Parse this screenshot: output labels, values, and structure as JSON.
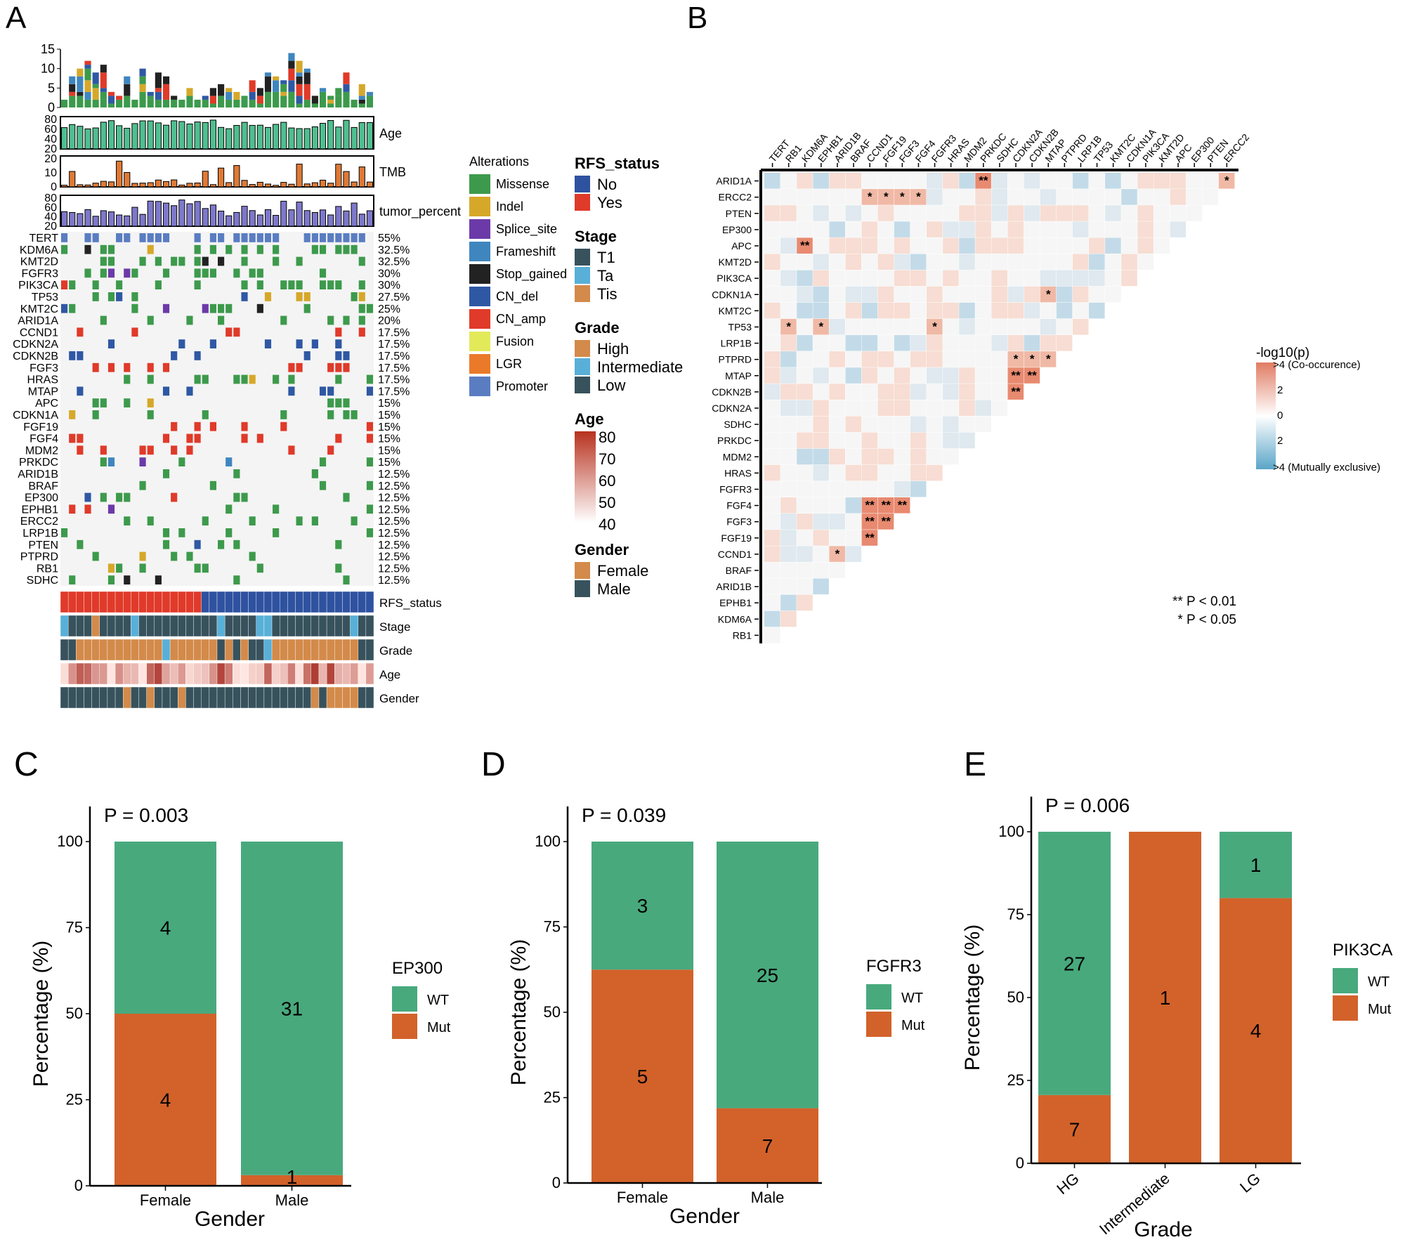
{
  "panel_letters": [
    "A",
    "B",
    "C",
    "D",
    "E"
  ],
  "colors": {
    "missense": "#3d9a4c",
    "indel": "#d6a82a",
    "splice_site": "#6c3aa8",
    "frameshift": "#3f86bf",
    "stop_gained": "#222222",
    "cn_del": "#2f58a4",
    "cn_amp": "#e03a2a",
    "fusion": "#e3ea5a",
    "lgr": "#ea7a2a",
    "promoter": "#5a7dc2",
    "rfs_no": "#2f52a0",
    "rfs_yes": "#e03a2a",
    "stage_t1": "#37525c",
    "stage_ta": "#58b0d8",
    "stage_tis": "#d38a4a",
    "grade_high": "#d38a4a",
    "grade_intermediate": "#58b0d8",
    "grade_low": "#37525c",
    "gender_female": "#d38a4a",
    "gender_male": "#37525c",
    "wt": "#48a97d",
    "mut": "#d2622a",
    "age_bar": "#4fbf8f",
    "tmb_bar": "#e07a35",
    "tumor_bar": "#8c86d6",
    "cooccur": "#e07c63",
    "exclusive": "#5aa5c8"
  },
  "chart_data": [
    {
      "type": "table",
      "panel": "A",
      "tracks": [
        "Age",
        "TMB",
        "tumor_percent"
      ],
      "tmb_ticks": [
        "0",
        "5",
        "10",
        "15"
      ],
      "age_ticks": [
        "20",
        "40",
        "60",
        "80"
      ],
      "tmb_track_ticks": [
        "0",
        "10",
        "20"
      ],
      "tumor_ticks": [
        "20",
        "40",
        "60",
        "80"
      ],
      "genes": [
        "TERT",
        "KDM6A",
        "KMT2D",
        "FGFR3",
        "PIK3CA",
        "TP53",
        "KMT2C",
        "ARID1A",
        "CCND1",
        "CDKN2A",
        "CDKN2B",
        "FGF3",
        "HRAS",
        "MTAP",
        "APC",
        "CDKN1A",
        "FGF19",
        "FGF4",
        "MDM2",
        "PRKDC",
        "ARID1B",
        "BRAF",
        "EP300",
        "EPHB1",
        "ERCC2",
        "LRP1B",
        "PTEN",
        "PTPRD",
        "RB1",
        "SDHC"
      ],
      "frequencies": [
        "55%",
        "32.5%",
        "32.5%",
        "30%",
        "30%",
        "27.5%",
        "25%",
        "20%",
        "17.5%",
        "17.5%",
        "17.5%",
        "17.5%",
        "17.5%",
        "17.5%",
        "15%",
        "15%",
        "15%",
        "15%",
        "15%",
        "15%",
        "12.5%",
        "12.5%",
        "12.5%",
        "12.5%",
        "12.5%",
        "12.5%",
        "12.5%",
        "12.5%",
        "12.5%",
        "12.5%"
      ],
      "annotation_tracks": [
        "RFS_status",
        "Stage",
        "Grade",
        "Age",
        "Gender"
      ],
      "legend_alterations_title": "Alterations",
      "alterations": [
        "Missense",
        "Indel",
        "Splice_site",
        "Frameshift",
        "Stop_gained",
        "CN_del",
        "CN_amp",
        "Fusion",
        "LGR",
        "Promoter"
      ],
      "legend_rfs_title": "RFS_status",
      "rfs": [
        "No",
        "Yes"
      ],
      "legend_stage_title": "Stage",
      "stage": [
        "T1",
        "Ta",
        "Tis"
      ],
      "legend_grade_title": "Grade",
      "grade": [
        "High",
        "Intermediate",
        "Low"
      ],
      "legend_age_title": "Age",
      "age_legend": [
        "80",
        "70",
        "60",
        "50",
        "40"
      ],
      "legend_gender_title": "Gender",
      "gender": [
        "Female",
        "Male"
      ],
      "n_samples": 40,
      "rfs_yes_count": 18
    },
    {
      "type": "heatmap",
      "panel": "B",
      "col_genes": [
        "TERT",
        "RB1",
        "KDM6A",
        "EPHB1",
        "ARID1B",
        "BRAF",
        "CCND1",
        "FGF19",
        "FGF3",
        "FGF4",
        "FGFR3",
        "HRAS",
        "MDM2",
        "PRKDC",
        "SDHC",
        "CDKN2A",
        "CDKN2B",
        "MTAP",
        "PTPRD",
        "LRP1B",
        "TP53",
        "KMT2C",
        "CDKN1A",
        "PIK3CA",
        "KMT2D",
        "APC",
        "EP300",
        "PTEN",
        "ERCC2"
      ],
      "row_genes": [
        "ARID1A",
        "ERCC2",
        "PTEN",
        "EP300",
        "APC",
        "KMT2D",
        "PIK3CA",
        "CDKN1A",
        "KMT2C",
        "TP53",
        "LRP1B",
        "PTPRD",
        "MTAP",
        "CDKN2B",
        "CDKN2A",
        "SDHC",
        "PRKDC",
        "MDM2",
        "HRAS",
        "FGFR3",
        "FGF4",
        "FGF3",
        "FGF19",
        "CCND1",
        "BRAF",
        "ARID1B",
        "EPHB1",
        "KDM6A",
        "RB1"
      ],
      "legend_title": "-log10(p)",
      "legend_labels": [
        ">4 (Co-occurence)",
        "2",
        "0",
        "2",
        ">4 (Mutually exclusive)"
      ],
      "sig_note_1": "** P < 0.01",
      "sig_note_2": "* P < 0.05",
      "significant": [
        {
          "row": "ARID1A",
          "col": "PRKDC",
          "label": "**"
        },
        {
          "row": "ARID1A",
          "col": "ERCC2",
          "label": "*"
        },
        {
          "row": "ERCC2",
          "col": "CCND1",
          "label": "*"
        },
        {
          "row": "ERCC2",
          "col": "FGF19",
          "label": "*"
        },
        {
          "row": "ERCC2",
          "col": "FGF3",
          "label": "*"
        },
        {
          "row": "ERCC2",
          "col": "FGF4",
          "label": "*"
        },
        {
          "row": "APC",
          "col": "KDM6A",
          "label": "**"
        },
        {
          "row": "CDKN1A",
          "col": "MTAP",
          "label": "*"
        },
        {
          "row": "TP53",
          "col": "RB1",
          "label": "*"
        },
        {
          "row": "TP53",
          "col": "EPHB1",
          "label": "*"
        },
        {
          "row": "TP53",
          "col": "FGFR3",
          "label": "*"
        },
        {
          "row": "PTPRD",
          "col": "CDKN2A",
          "label": "*"
        },
        {
          "row": "PTPRD",
          "col": "CDKN2B",
          "label": "*"
        },
        {
          "row": "PTPRD",
          "col": "MTAP",
          "label": "*"
        },
        {
          "row": "MTAP",
          "col": "CDKN2A",
          "label": "**"
        },
        {
          "row": "MTAP",
          "col": "CDKN2B",
          "label": "**"
        },
        {
          "row": "CDKN2B",
          "col": "CDKN2A",
          "label": "**"
        },
        {
          "row": "FGF4",
          "col": "CCND1",
          "label": "**"
        },
        {
          "row": "FGF4",
          "col": "FGF19",
          "label": "**"
        },
        {
          "row": "FGF4",
          "col": "FGF3",
          "label": "**"
        },
        {
          "row": "FGF3",
          "col": "CCND1",
          "label": "**"
        },
        {
          "row": "FGF3",
          "col": "FGF19",
          "label": "**"
        },
        {
          "row": "FGF19",
          "col": "CCND1",
          "label": "**"
        },
        {
          "row": "CCND1",
          "col": "ARID1B",
          "label": "*"
        }
      ]
    },
    {
      "type": "bar",
      "panel": "C",
      "annotation": "P = 0.003",
      "categories": [
        "Female",
        "Male"
      ],
      "xlabel": "Gender",
      "ylabel": "Percentage (%)",
      "legend_title": "EP300",
      "legend": [
        "WT",
        "Mut"
      ],
      "ylim": [
        0,
        100
      ],
      "yticks": [
        "0",
        "25",
        "50",
        "75",
        "100"
      ],
      "series": [
        {
          "name": "Mut",
          "values": [
            50,
            3.1
          ],
          "counts": [
            "4",
            "1"
          ]
        },
        {
          "name": "WT",
          "values": [
            50,
            96.9
          ],
          "counts": [
            "4",
            "31"
          ]
        }
      ]
    },
    {
      "type": "bar",
      "panel": "D",
      "annotation": "P = 0.039",
      "categories": [
        "Female",
        "Male"
      ],
      "xlabel": "Gender",
      "ylabel": "Percentage (%)",
      "legend_title": "FGFR3",
      "legend": [
        "WT",
        "Mut"
      ],
      "ylim": [
        0,
        100
      ],
      "yticks": [
        "0",
        "25",
        "50",
        "75",
        "100"
      ],
      "series": [
        {
          "name": "Mut",
          "values": [
            62.5,
            21.9
          ],
          "counts": [
            "5",
            "7"
          ]
        },
        {
          "name": "WT",
          "values": [
            37.5,
            78.1
          ],
          "counts": [
            "3",
            "25"
          ]
        }
      ]
    },
    {
      "type": "bar",
      "panel": "E",
      "annotation": "P = 0.006",
      "categories": [
        "HG",
        "Intermediate",
        "LG"
      ],
      "xlabel": "Grade",
      "ylabel": "Percentage (%)",
      "legend_title": "PIK3CA",
      "legend": [
        "WT",
        "Mut"
      ],
      "ylim": [
        0,
        100
      ],
      "yticks": [
        "0",
        "25",
        "50",
        "75",
        "100"
      ],
      "series": [
        {
          "name": "Mut",
          "values": [
            20.6,
            100,
            80
          ],
          "counts": [
            "7",
            "1",
            "4"
          ]
        },
        {
          "name": "WT",
          "values": [
            79.4,
            0,
            20
          ],
          "counts": [
            "27",
            "",
            "1"
          ]
        }
      ]
    }
  ]
}
